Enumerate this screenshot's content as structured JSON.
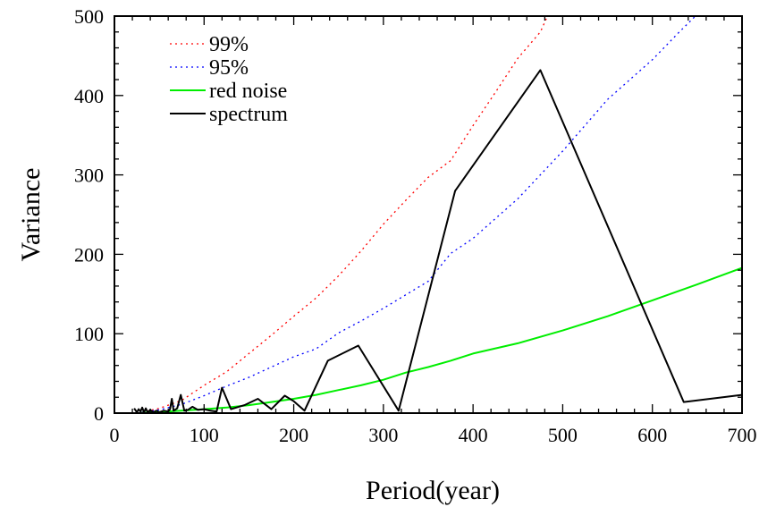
{
  "chart_data": {
    "type": "line",
    "title": "",
    "xlabel": "Period(year)",
    "ylabel": "Variance",
    "xlim": [
      0,
      700
    ],
    "ylim": [
      0,
      500
    ],
    "x_ticks": [
      0,
      100,
      200,
      300,
      400,
      500,
      600,
      700
    ],
    "y_ticks": [
      0,
      100,
      200,
      300,
      400,
      500
    ],
    "x_tick_labels": [
      "0",
      "100",
      "200",
      "300",
      "400",
      "500",
      "600",
      "700"
    ],
    "y_tick_labels": [
      "0",
      "100",
      "200",
      "300",
      "400",
      "500"
    ],
    "grid": false,
    "legend_position": "top-left",
    "series": [
      {
        "name": "99%",
        "style": "dotted",
        "color": "#ff0000",
        "points": [
          [
            30,
            1
          ],
          [
            50,
            6
          ],
          [
            75,
            16
          ],
          [
            100,
            35
          ],
          [
            125,
            52
          ],
          [
            150,
            75
          ],
          [
            175,
            98
          ],
          [
            200,
            122
          ],
          [
            225,
            145
          ],
          [
            250,
            173
          ],
          [
            275,
            204
          ],
          [
            300,
            238
          ],
          [
            325,
            268
          ],
          [
            350,
            297
          ],
          [
            375,
            318
          ],
          [
            400,
            362
          ],
          [
            425,
            404
          ],
          [
            450,
            447
          ],
          [
            475,
            480
          ],
          [
            483,
            500
          ]
        ]
      },
      {
        "name": "95%",
        "style": "dotted",
        "color": "#0000ff",
        "points": [
          [
            30,
            1
          ],
          [
            50,
            4
          ],
          [
            75,
            11
          ],
          [
            100,
            22
          ],
          [
            125,
            34
          ],
          [
            150,
            45
          ],
          [
            175,
            58
          ],
          [
            200,
            71
          ],
          [
            225,
            81
          ],
          [
            250,
            101
          ],
          [
            275,
            116
          ],
          [
            300,
            132
          ],
          [
            325,
            149
          ],
          [
            350,
            166
          ],
          [
            375,
            201
          ],
          [
            400,
            220
          ],
          [
            450,
            270
          ],
          [
            500,
            330
          ],
          [
            550,
            395
          ],
          [
            600,
            445
          ],
          [
            630,
            480
          ],
          [
            648,
            500
          ]
        ]
      },
      {
        "name": "red noise",
        "style": "solid",
        "color": "#00ee00",
        "points": [
          [
            30,
            0.3
          ],
          [
            50,
            1.5
          ],
          [
            75,
            3
          ],
          [
            100,
            5
          ],
          [
            125,
            7
          ],
          [
            150,
            10
          ],
          [
            175,
            14
          ],
          [
            200,
            18
          ],
          [
            225,
            23
          ],
          [
            250,
            29
          ],
          [
            275,
            35
          ],
          [
            300,
            42
          ],
          [
            325,
            51
          ],
          [
            350,
            58
          ],
          [
            375,
            66
          ],
          [
            400,
            75
          ],
          [
            450,
            88
          ],
          [
            500,
            104
          ],
          [
            550,
            122
          ],
          [
            600,
            142
          ],
          [
            650,
            162
          ],
          [
            700,
            183
          ]
        ]
      },
      {
        "name": "spectrum",
        "style": "solid",
        "color": "#000000",
        "points": [
          [
            22,
            6
          ],
          [
            25,
            1
          ],
          [
            27,
            5
          ],
          [
            29,
            2
          ],
          [
            31,
            7
          ],
          [
            33,
            1
          ],
          [
            35,
            6
          ],
          [
            37,
            1
          ],
          [
            40,
            4
          ],
          [
            43,
            1
          ],
          [
            47,
            3
          ],
          [
            50,
            1
          ],
          [
            55,
            3
          ],
          [
            60,
            2
          ],
          [
            62,
            5
          ],
          [
            64,
            18
          ],
          [
            66,
            3
          ],
          [
            70,
            6
          ],
          [
            74,
            23
          ],
          [
            78,
            3
          ],
          [
            82,
            4
          ],
          [
            87,
            8
          ],
          [
            93,
            4
          ],
          [
            100,
            5
          ],
          [
            107,
            3
          ],
          [
            114,
            2
          ],
          [
            120,
            32
          ],
          [
            130,
            5
          ],
          [
            145,
            10
          ],
          [
            160,
            18
          ],
          [
            175,
            5
          ],
          [
            190,
            22
          ],
          [
            200,
            15
          ],
          [
            212,
            3
          ],
          [
            238,
            66
          ],
          [
            272,
            85
          ],
          [
            317,
            3
          ],
          [
            380,
            280
          ],
          [
            475,
            432
          ],
          [
            635,
            14
          ],
          [
            700,
            23
          ]
        ]
      }
    ]
  }
}
